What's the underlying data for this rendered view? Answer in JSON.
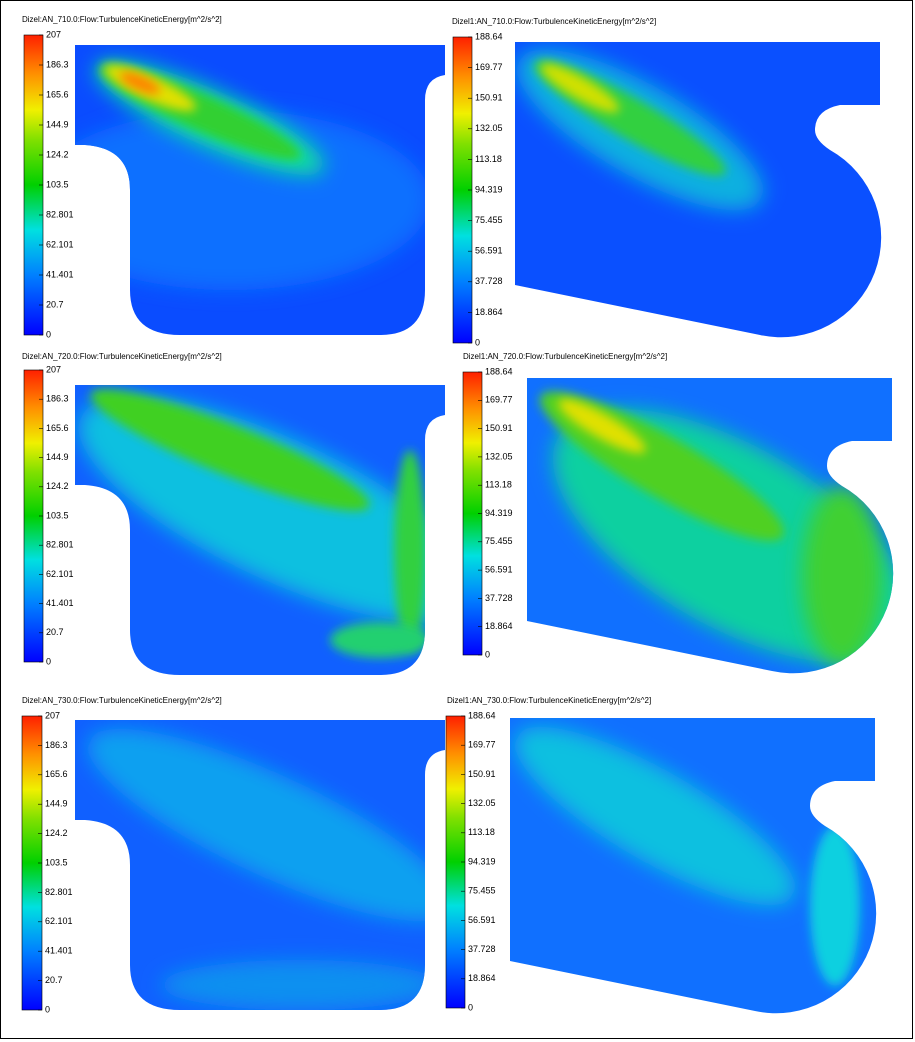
{
  "panels": [
    {
      "title": "Dizel:AN_710.0:Flow:TurbulenceKineticEnergy[m^2/s^2]",
      "colorbar": {
        "ticks": [
          0,
          20.7,
          41.401,
          62.101,
          82.801,
          103.5,
          124.2,
          144.9,
          165.6,
          186.3,
          207
        ]
      }
    },
    {
      "title": "Dizel1:AN_710.0:Flow:TurbulenceKineticEnergy[m^2/s^2]",
      "colorbar": {
        "ticks": [
          0,
          18.864,
          37.728,
          56.591,
          75.455,
          94.319,
          113.18,
          132.05,
          150.91,
          169.77,
          188.64
        ]
      }
    },
    {
      "title": "Dizel:AN_720.0:Flow:TurbulenceKineticEnergy[m^2/s^2]",
      "colorbar": {
        "ticks": [
          0,
          20.7,
          41.401,
          62.101,
          82.801,
          103.5,
          124.2,
          144.9,
          165.6,
          186.3,
          207
        ]
      }
    },
    {
      "title": "Dizel1:AN_720.0:Flow:TurbulenceKineticEnergy[m^2/s^2]",
      "colorbar": {
        "ticks": [
          0,
          18.864,
          37.728,
          56.591,
          75.455,
          94.319,
          113.18,
          132.05,
          150.91,
          169.77,
          188.64
        ]
      }
    },
    {
      "title": "Dizel:AN_730.0:Flow:TurbulenceKineticEnergy[m^2/s^2]",
      "colorbar": {
        "ticks": [
          0,
          20.7,
          41.401,
          62.101,
          82.801,
          103.5,
          124.2,
          144.9,
          165.6,
          186.3,
          207
        ]
      }
    },
    {
      "title": "Dizel1:AN_730.0:Flow:TurbulenceKineticEnergy[m^2/s^2]",
      "colorbar": {
        "ticks": [
          0,
          18.864,
          37.728,
          56.591,
          75.455,
          94.319,
          113.18,
          132.05,
          150.91,
          169.77,
          188.64
        ]
      }
    }
  ]
}
